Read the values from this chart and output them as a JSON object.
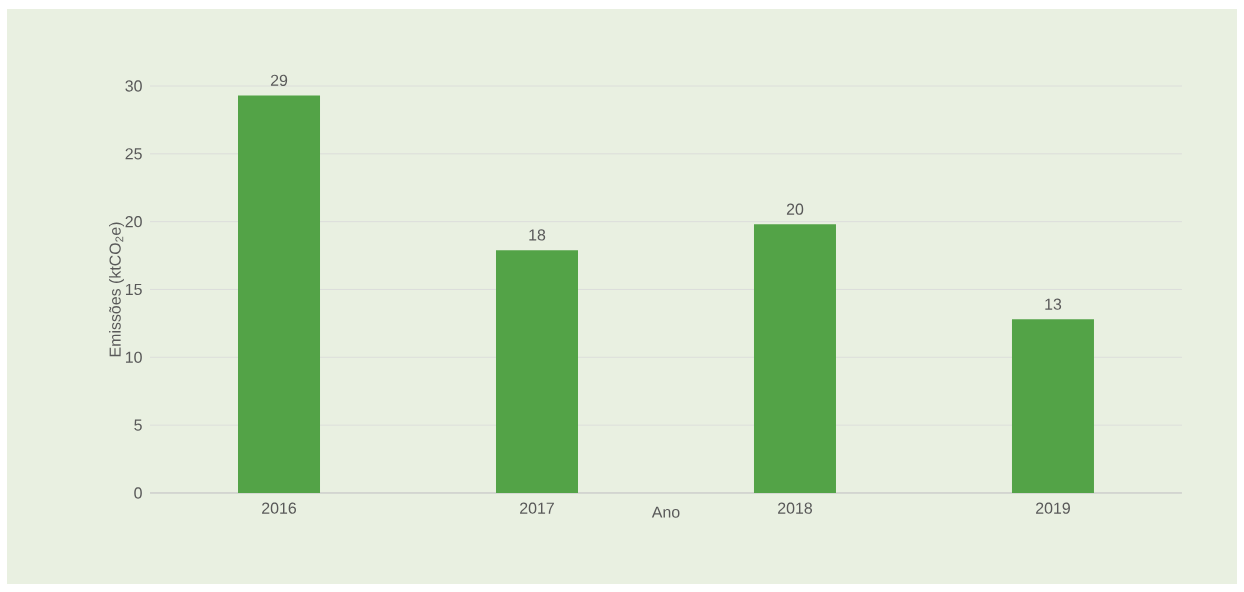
{
  "chart_data": {
    "type": "bar",
    "xlabel": "Ano",
    "ylabel": "Emissões (ktCO$_{2}$e)",
    "categories": [
      "2016",
      "2017",
      "2018",
      "2019"
    ],
    "values": [
      29.3,
      17.9,
      19.8,
      12.8
    ],
    "value_labels": [
      "29",
      "18",
      "20",
      "13"
    ],
    "color": "#53a347",
    "ylim": [
      0,
      30
    ],
    "yticks": [
      0,
      5,
      10,
      15,
      20,
      25,
      30
    ],
    "grid": "y"
  }
}
